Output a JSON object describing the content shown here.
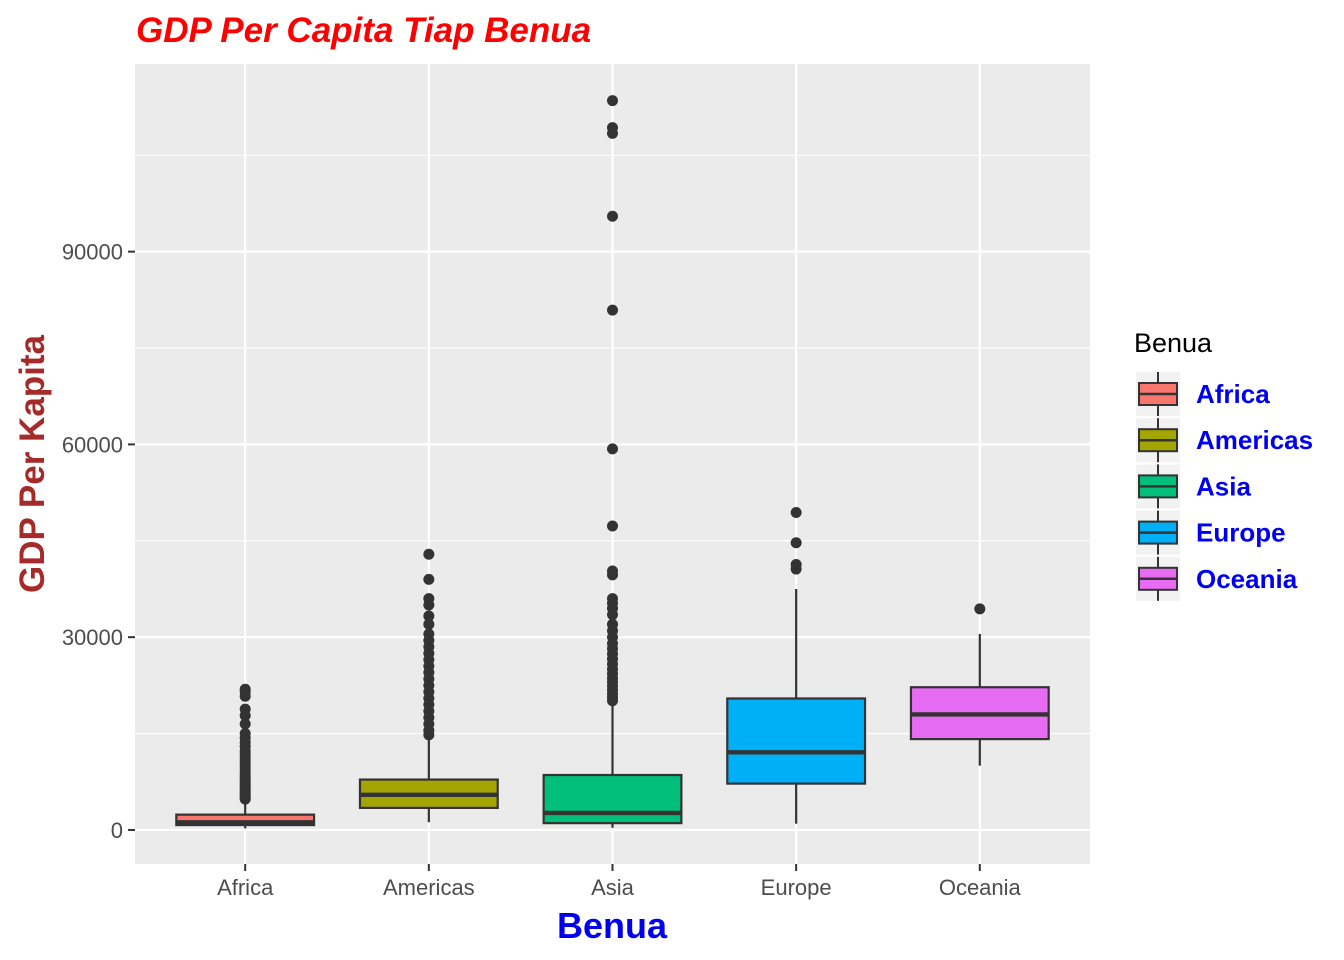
{
  "chart_data": {
    "type": "boxplot",
    "title": "GDP Per Capita Tiap Benua",
    "xlabel": "Benua",
    "ylabel": "GDP Per Kapita",
    "categories": [
      "Africa",
      "Americas",
      "Asia",
      "Europe",
      "Oceania"
    ],
    "yticks": [
      0,
      30000,
      60000,
      90000
    ],
    "ytick_labels": [
      "0",
      "30000",
      "60000",
      "90000"
    ],
    "ylim": [
      -5300,
      119200
    ],
    "grid": true,
    "legend": {
      "title": "Benua",
      "placement": "right",
      "entries": [
        "Africa",
        "Americas",
        "Asia",
        "Europe",
        "Oceania"
      ]
    },
    "colors": {
      "Africa": "#f8766d",
      "Americas": "#a3a500",
      "Asia": "#00bf7d",
      "Europe": "#00b0f6",
      "Oceania": "#e76bf3",
      "panel_bg": "#ebebeb",
      "grid": "#ffffff",
      "outline": "#333333"
    },
    "boxes": [
      {
        "category": "Africa",
        "whisker_low": 240,
        "q1": 760,
        "median": 1190,
        "q3": 2380,
        "whisker_high": 4700,
        "outliers": [
          4800,
          5000,
          5200,
          5500,
          5800,
          6100,
          6400,
          6700,
          7000,
          7300,
          7600,
          8000,
          8400,
          8800,
          9300,
          9800,
          10300,
          10800,
          11300,
          11800,
          12300,
          13000,
          13600,
          14300,
          15000,
          16500,
          17800,
          18800,
          20800,
          21500,
          21900
        ]
      },
      {
        "category": "Americas",
        "whisker_low": 1200,
        "q1": 3430,
        "median": 5470,
        "q3": 7840,
        "whisker_high": 14400,
        "outliers": [
          14800,
          15500,
          16500,
          17500,
          18500,
          19500,
          20500,
          21500,
          22500,
          23500,
          24500,
          25500,
          26500,
          27500,
          28500,
          29500,
          30500,
          32000,
          33300,
          35000,
          36000,
          39000,
          42900
        ]
      },
      {
        "category": "Asia",
        "whisker_low": 330,
        "q1": 1060,
        "median": 2650,
        "q3": 8550,
        "whisker_high": 19700,
        "outliers": [
          20100,
          20600,
          21200,
          21800,
          22400,
          23000,
          23600,
          24300,
          25000,
          25800,
          26600,
          27400,
          28200,
          29000,
          30000,
          31000,
          32000,
          33500,
          34500,
          35300,
          36000,
          39700,
          40300,
          47300,
          59300,
          80900,
          95500,
          108400,
          109300,
          113500
        ]
      },
      {
        "category": "Europe",
        "whisker_low": 970,
        "q1": 7210,
        "median": 12080,
        "q3": 20460,
        "whisker_high": 37500,
        "outliers": [
          40600,
          41300,
          44700,
          49400
        ]
      },
      {
        "category": "Oceania",
        "whisker_low": 10000,
        "q1": 14140,
        "median": 17980,
        "q3": 22210,
        "whisker_high": 30500,
        "outliers": [
          34400
        ]
      }
    ]
  }
}
